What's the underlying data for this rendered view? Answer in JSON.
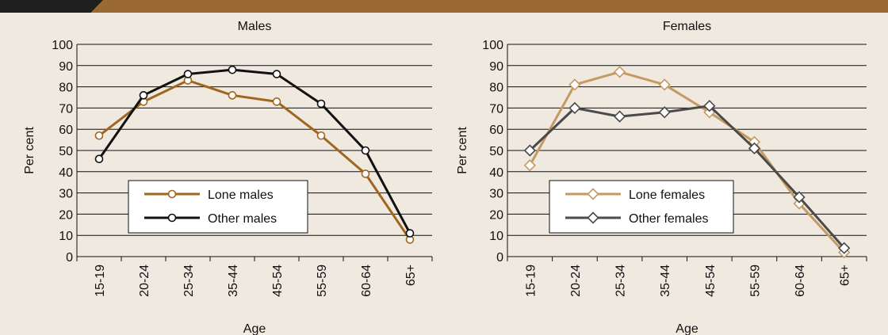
{
  "colors": {
    "background": "#efe9df",
    "header_bar": "#9b6a34",
    "header_dark": "#1f1f1f"
  },
  "chart_data": [
    {
      "type": "line",
      "title": "Males",
      "xlabel": "Age",
      "ylabel": "Per cent",
      "ylim": [
        0,
        100
      ],
      "yticks": [
        0,
        10,
        20,
        30,
        40,
        50,
        60,
        70,
        80,
        90,
        100
      ],
      "categories": [
        "15-19",
        "20-24",
        "25-34",
        "35-44",
        "45-54",
        "55-59",
        "60-64",
        "65+"
      ],
      "grid": "horizontal",
      "legend_position": "lower-left",
      "marker": "circle",
      "series": [
        {
          "name": "Lone males",
          "color": "#a0661f",
          "values": [
            57,
            73,
            83,
            76,
            73,
            57,
            39,
            8
          ]
        },
        {
          "name": "Other males",
          "color": "#111111",
          "values": [
            46,
            76,
            86,
            88,
            86,
            72,
            50,
            11
          ]
        }
      ]
    },
    {
      "type": "line",
      "title": "Females",
      "xlabel": "Age",
      "ylabel": "Per cent",
      "ylim": [
        0,
        100
      ],
      "yticks": [
        0,
        10,
        20,
        30,
        40,
        50,
        60,
        70,
        80,
        90,
        100
      ],
      "categories": [
        "15-19",
        "20-24",
        "25-34",
        "35-44",
        "45-54",
        "55-59",
        "60-64",
        "65+"
      ],
      "grid": "horizontal",
      "legend_position": "lower-left",
      "marker": "diamond",
      "series": [
        {
          "name": "Lone females",
          "color": "#c49a62",
          "values": [
            43,
            81,
            87,
            81,
            68,
            54,
            25,
            2
          ]
        },
        {
          "name": "Other females",
          "color": "#4a4a4a",
          "values": [
            50,
            70,
            66,
            68,
            71,
            51,
            28,
            4
          ]
        }
      ]
    }
  ]
}
